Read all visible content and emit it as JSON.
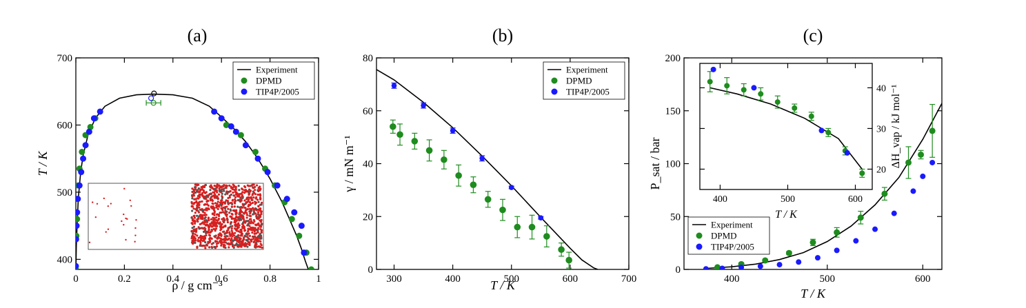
{
  "figure": {
    "panels": [
      "(a)",
      "(b)",
      "(c)"
    ]
  },
  "chart_data": [
    {
      "panel": "(a)",
      "type": "scatter",
      "title": "(a)",
      "xlabel": "ρ / g cm⁻³",
      "ylabel": "T / K",
      "xlim": [
        0,
        1
      ],
      "ylim": [
        385,
        700
      ],
      "xticks": [
        0,
        0.2,
        0.4,
        0.6,
        0.8,
        1
      ],
      "xtick_labels": [
        "0",
        "0.2",
        "0.4",
        "0.6",
        "0.8",
        "1"
      ],
      "yticks": [
        400,
        500,
        600,
        700
      ],
      "ytick_labels": [
        "400",
        "500",
        "600",
        "700"
      ],
      "legend": {
        "position": "top-right",
        "entries": [
          "Experiment",
          "DPMD",
          "TIP4P/2005"
        ]
      },
      "colors": {
        "Experiment": "#000000",
        "DPMD": "#1e8c1e",
        "TIP4P/2005": "#1a1aff"
      },
      "series": [
        {
          "name": "Experiment",
          "kind": "line",
          "x": [
            0.0003,
            0.002,
            0.005,
            0.01,
            0.02,
            0.03,
            0.05,
            0.08,
            0.12,
            0.18,
            0.25,
            0.32,
            0.4,
            0.48,
            0.55,
            0.6,
            0.65,
            0.7,
            0.75,
            0.8,
            0.85,
            0.88,
            0.91,
            0.93,
            0.945,
            0.958
          ],
          "y": [
            385,
            420,
            450,
            490,
            530,
            555,
            585,
            610,
            628,
            640,
            645,
            646,
            645,
            640,
            628,
            612,
            595,
            575,
            550,
            520,
            485,
            460,
            435,
            415,
            398,
            385
          ]
        },
        {
          "name": "DPMD",
          "kind": "points",
          "x": [
            0.0,
            0.002,
            0.005,
            0.01,
            0.015,
            0.025,
            0.04,
            0.06,
            0.08,
            0.62,
            0.68,
            0.74,
            0.78,
            0.82,
            0.86,
            0.89,
            0.92,
            0.95,
            0.97
          ],
          "y": [
            385,
            435,
            460,
            510,
            535,
            560,
            585,
            597,
            610,
            600,
            585,
            560,
            535,
            510,
            485,
            460,
            435,
            410,
            385
          ]
        },
        {
          "name": "TIP4P/2005",
          "kind": "points",
          "x": [
            0.0,
            0.001,
            0.003,
            0.005,
            0.008,
            0.015,
            0.022,
            0.03,
            0.04,
            0.055,
            0.075,
            0.1,
            0.57,
            0.6,
            0.64,
            0.66,
            0.7,
            0.75,
            0.79,
            0.83,
            0.87,
            0.9,
            0.93,
            0.94
          ],
          "y": [
            390,
            430,
            450,
            470,
            490,
            510,
            530,
            550,
            570,
            590,
            610,
            620,
            620,
            610,
            598,
            590,
            570,
            550,
            530,
            510,
            490,
            470,
            450,
            410
          ]
        }
      ],
      "critical_points": [
        {
          "name": "Experiment",
          "x": 0.322,
          "y": 647
        },
        {
          "name": "TIP4P/2005",
          "x": 0.31,
          "y": 640
        },
        {
          "name": "DPMD",
          "x": 0.32,
          "y": 633,
          "xerr": 0.03
        }
      ]
    },
    {
      "panel": "(b)",
      "type": "scatter",
      "title": "(b)",
      "xlabel": "T / K",
      "ylabel": "γ / mN m⁻¹",
      "xlim": [
        270,
        700
      ],
      "ylim": [
        0,
        80
      ],
      "xticks": [
        300,
        400,
        500,
        600,
        700
      ],
      "xtick_labels": [
        "300",
        "400",
        "500",
        "600",
        "700"
      ],
      "yticks": [
        0,
        20,
        40,
        60,
        80
      ],
      "ytick_labels": [
        "0",
        "20",
        "40",
        "60",
        "80"
      ],
      "legend": {
        "position": "top-right",
        "entries": [
          "Experiment",
          "DPMD",
          "TIP4P/2005"
        ]
      },
      "series": [
        {
          "name": "Experiment",
          "kind": "line",
          "x": [
            270,
            300,
            350,
            400,
            450,
            500,
            550,
            600,
            620,
            640,
            647
          ],
          "y": [
            75.6,
            71.7,
            63.2,
            53.6,
            42.9,
            31.6,
            19.7,
            8.0,
            3.6,
            0.6,
            0
          ]
        },
        {
          "name": "DPMD",
          "kind": "points",
          "x": [
            298,
            310,
            335,
            360,
            385,
            410,
            435,
            460,
            485,
            510,
            535,
            560,
            585,
            598
          ],
          "y": [
            54,
            51,
            48.5,
            45,
            41.5,
            35.5,
            32,
            26.5,
            22.5,
            16,
            16,
            12.5,
            7.5,
            3.5
          ],
          "yerr": [
            2.5,
            4,
            3,
            4,
            3.5,
            4,
            3,
            3,
            4,
            4,
            4.5,
            4,
            2.5,
            3
          ]
        },
        {
          "name": "TIP4P/2005",
          "kind": "points",
          "x": [
            300,
            350,
            400,
            450,
            500,
            550
          ],
          "y": [
            69.5,
            62,
            52.5,
            42,
            31,
            19.5
          ],
          "yerr": [
            1,
            1,
            1,
            1,
            0.5,
            0.5
          ]
        }
      ]
    },
    {
      "panel": "(c)",
      "type": "scatter",
      "title": "(c)",
      "xlabel": "T / K",
      "ylabel": "P_sat / bar",
      "xlim": [
        350,
        620
      ],
      "ylim": [
        0,
        200
      ],
      "xticks": [
        400,
        500,
        600
      ],
      "xtick_labels": [
        "400",
        "500",
        "600"
      ],
      "yticks": [
        0,
        50,
        100,
        150,
        200
      ],
      "ytick_labels": [
        "0",
        "50",
        "100",
        "150",
        "200"
      ],
      "legend": {
        "position": "bottom-left",
        "entries": [
          "Experiment",
          "DPMD",
          "TIP4P/2005"
        ]
      },
      "series": [
        {
          "name": "Experiment",
          "kind": "line",
          "x": [
            373,
            400,
            425,
            450,
            475,
            500,
            525,
            550,
            575,
            600,
            620
          ],
          "y": [
            1.0,
            2.5,
            5.0,
            9.3,
            15.9,
            26.4,
            41.0,
            61.0,
            87.0,
            123.0,
            157.0
          ]
        },
        {
          "name": "DPMD",
          "kind": "points",
          "x": [
            385,
            410,
            435,
            460,
            485,
            510,
            535,
            560,
            585,
            598,
            610
          ],
          "y": [
            2,
            5,
            8.5,
            15.5,
            25.5,
            35,
            49,
            71.5,
            101,
            108.5,
            131
          ],
          "yerr": [
            1,
            1,
            1,
            1.5,
            3,
            4.5,
            6,
            6,
            15,
            4,
            25
          ]
        },
        {
          "name": "TIP4P/2005",
          "kind": "points",
          "x": [
            373,
            390,
            410,
            430,
            450,
            470,
            490,
            510,
            530,
            550,
            570,
            590,
            600,
            610
          ],
          "y": [
            0.5,
            1,
            2,
            3,
            4.5,
            7,
            11,
            18,
            27,
            38,
            53,
            74,
            88,
            101
          ]
        }
      ],
      "inset": {
        "xlabel": "T / K",
        "ylabel": "ΔH_vap / kJ mol⁻¹",
        "xlim": [
          370,
          625
        ],
        "ylim": [
          15,
          46
        ],
        "xticks": [
          400,
          500,
          600
        ],
        "xtick_labels": [
          "400",
          "500",
          "600"
        ],
        "yticks": [
          20,
          30,
          40
        ],
        "ytick_labels": [
          "20",
          "30",
          "40"
        ],
        "series": [
          {
            "name": "Experiment",
            "kind": "line",
            "x": [
              385,
              425,
              475,
              525,
              575,
              610
            ],
            "y": [
              40,
              38.5,
              36,
              32.5,
              27.5,
              20
            ]
          },
          {
            "name": "DPMD",
            "kind": "points",
            "x": [
              385,
              410,
              435,
              460,
              485,
              510,
              535,
              560,
              585,
              610
            ],
            "y": [
              41.5,
              40.5,
              39.5,
              38.5,
              36.5,
              35,
              33,
              29,
              24.5,
              19
            ],
            "yerr": [
              2.5,
              2,
              1.5,
              1.5,
              1.5,
              1,
              1,
              1,
              1,
              1
            ]
          },
          {
            "name": "TIP4P/2005",
            "kind": "points",
            "x": [
              390,
              450,
              550,
              588
            ],
            "y": [
              44.5,
              40,
              29.5,
              24
            ]
          }
        ]
      }
    }
  ]
}
